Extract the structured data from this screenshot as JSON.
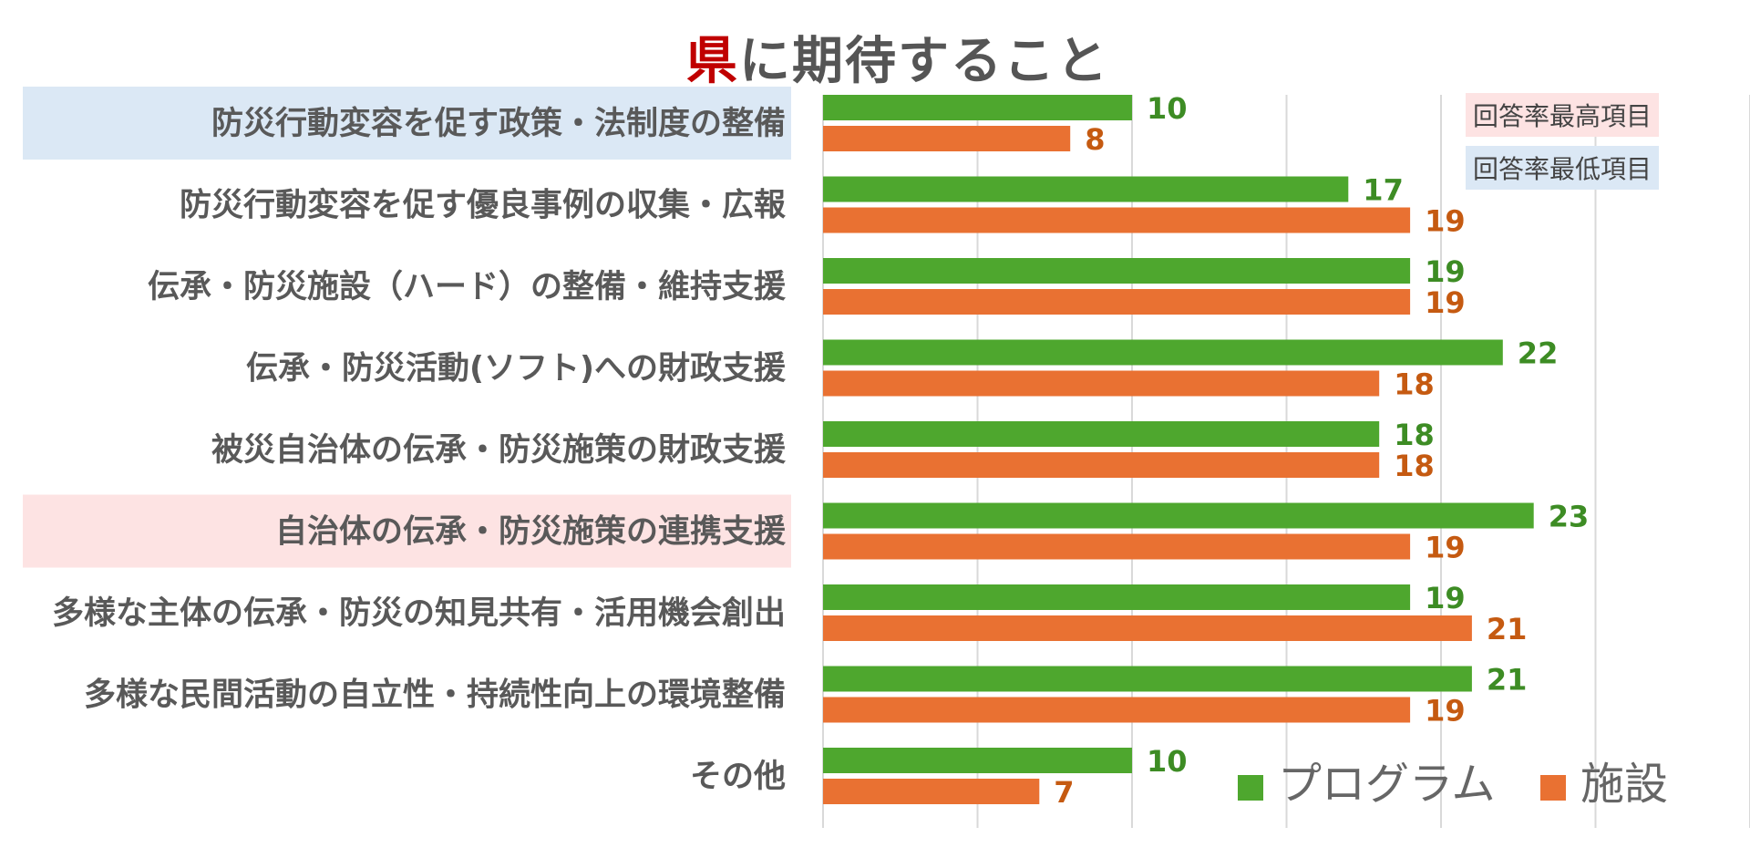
{
  "title": {
    "accent": "県",
    "rest": "に期待すること"
  },
  "colors": {
    "program": "#4ea72e",
    "facility": "#e97132",
    "program_label": "#3d8c24",
    "facility_label": "#c55a11",
    "highest_bg": "#fde3e3",
    "lowest_bg": "#dbe8f5",
    "grid": "#d9d9d9",
    "category_text": "#595959"
  },
  "highlight_legend": {
    "highest": "回答率最高項目",
    "lowest": "回答率最低項目"
  },
  "chart_data": {
    "type": "bar",
    "orientation": "horizontal",
    "title": "県に期待すること",
    "categories": [
      "防災行動変容を促す政策・法制度の整備",
      "防災行動変容を促す優良事例の収集・広報",
      "伝承・防災施設（ハード）の整備・維持支援",
      "伝承・防災活動(ソフト)への財政支援",
      "被災自治体の伝承・防災施策の財政支援",
      "自治体の伝承・防災施策の連携支援",
      "多様な主体の伝承・防災の知見共有・活用機会創出",
      "多様な民間活動の自立性・持続性向上の環境整備",
      "その他"
    ],
    "series": [
      {
        "name": "プログラム",
        "values": [
          10,
          17,
          19,
          22,
          18,
          23,
          19,
          21,
          10
        ]
      },
      {
        "name": "施設",
        "values": [
          8,
          19,
          19,
          18,
          18,
          19,
          21,
          19,
          7
        ]
      }
    ],
    "xlim": [
      0,
      30
    ],
    "highlight": {
      "lowest_index": 0,
      "highest_index": 5
    },
    "grid": true,
    "legend_position": "bottom-right"
  }
}
